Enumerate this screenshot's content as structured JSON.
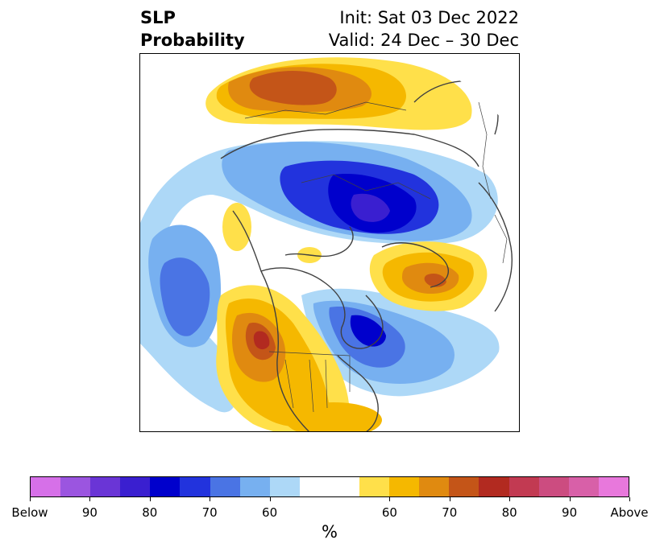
{
  "header": {
    "title_line1": "SLP",
    "title_line2": "Probability",
    "init": "Init: Sat 03 Dec 2022",
    "valid": "Valid: 24 Dec – 30 Dec"
  },
  "map": {
    "projection": "polar-stereographic",
    "features": [
      "below-normal-slp-aleutians",
      "below-normal-slp-eastern-canada",
      "below-normal-slp-siberia",
      "above-normal-slp-western-us",
      "above-normal-slp-scandinavia-russia",
      "above-normal-slp-north-atlantic"
    ]
  },
  "colorbar": {
    "colors": [
      "#d670e8",
      "#9b55e0",
      "#6a35d6",
      "#3a1fd0",
      "#0000cc",
      "#2233dd",
      "#4a74e4",
      "#77b0f0",
      "#add8f7",
      "#ffffff",
      "#ffffff",
      "#ffe04a",
      "#f5b800",
      "#e08a10",
      "#c45518",
      "#b22a20",
      "#c23a52",
      "#cc4c80",
      "#d860a8",
      "#e878dc"
    ],
    "tick_labels": [
      "Below",
      "90",
      "80",
      "70",
      "60",
      "60",
      "70",
      "80",
      "90",
      "Above"
    ],
    "unit": "%"
  }
}
